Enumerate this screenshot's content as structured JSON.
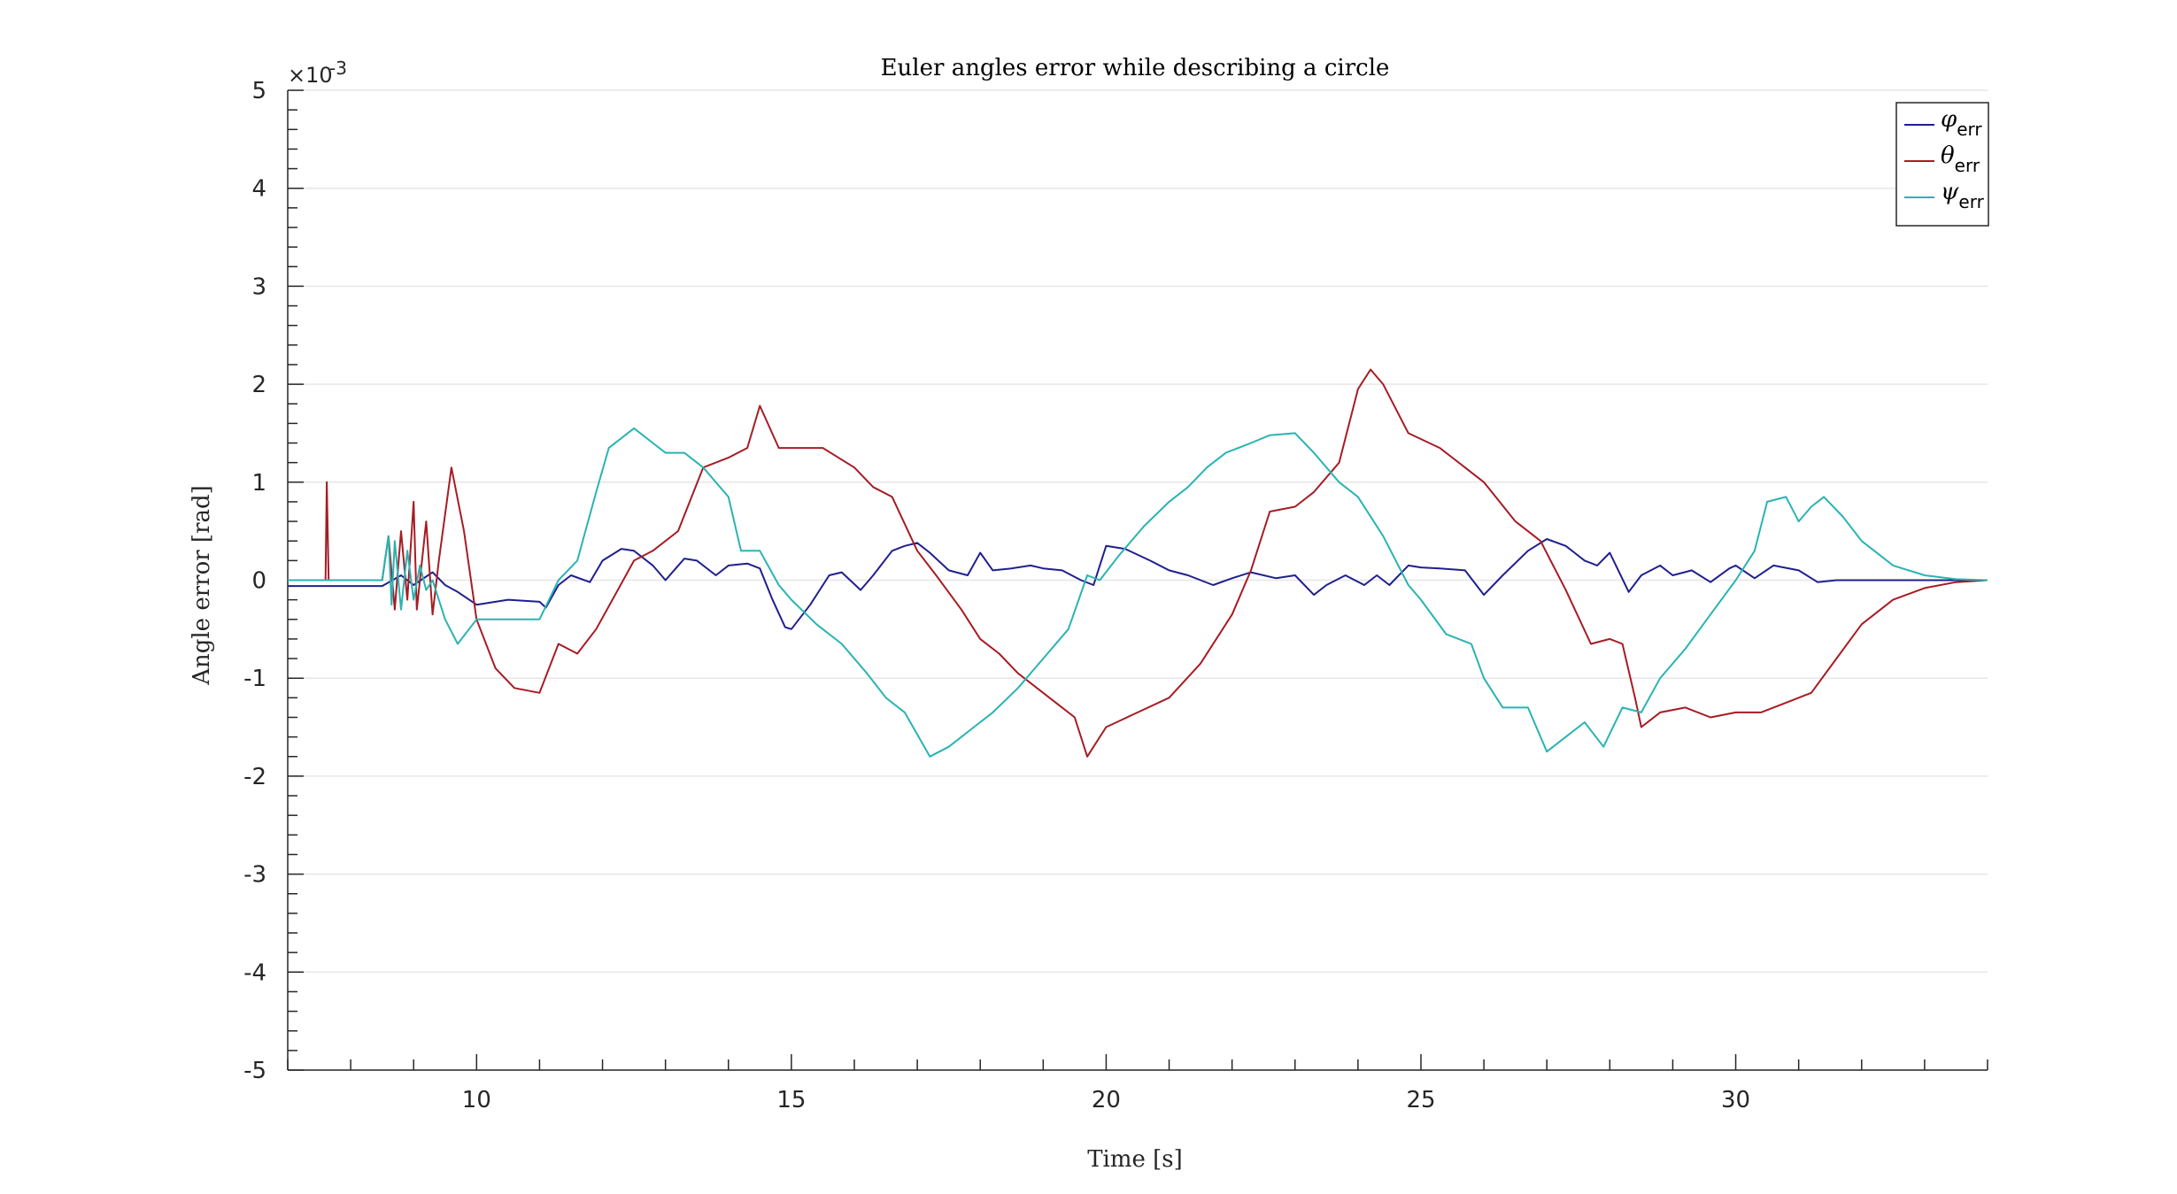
{
  "chart_data": {
    "type": "line",
    "title": "Euler angles error while describing a circle",
    "xlabel": "Time [s]",
    "ylabel": "Angle error [rad]",
    "y_exponent_label": "×10",
    "y_exponent_power": "-3",
    "xlim": [
      7,
      34
    ],
    "ylim": [
      -5,
      5
    ],
    "x_ticks": [
      10,
      15,
      20,
      25,
      30
    ],
    "y_ticks": [
      -5,
      -4,
      -3,
      -2,
      -1,
      0,
      1,
      2,
      3,
      4,
      5
    ],
    "grid": "y-major",
    "legend_position": "top-right",
    "colors": {
      "phi": "#1f1f8f",
      "theta": "#a61c24",
      "psi": "#2ab3b3",
      "axis": "#262626",
      "grid": "#e6e6e6"
    },
    "series": [
      {
        "key": "phi",
        "name": "φ",
        "sub": "err",
        "x": [
          7.0,
          8.5,
          8.8,
          9.0,
          9.3,
          9.5,
          9.7,
          10.0,
          10.5,
          11.0,
          11.1,
          11.3,
          11.5,
          11.8,
          12.0,
          12.3,
          12.5,
          12.8,
          13.0,
          13.3,
          13.5,
          13.8,
          14.0,
          14.3,
          14.5,
          14.7,
          14.9,
          15.0,
          15.3,
          15.6,
          15.8,
          16.1,
          16.3,
          16.6,
          16.8,
          17.0,
          17.2,
          17.5,
          17.8,
          18.0,
          18.2,
          18.5,
          18.8,
          19.0,
          19.3,
          19.6,
          19.8,
          20.0,
          20.3,
          20.7,
          21.0,
          21.3,
          21.7,
          22.0,
          22.3,
          22.7,
          23.0,
          23.3,
          23.5,
          23.8,
          24.1,
          24.3,
          24.5,
          24.8,
          25.0,
          25.3,
          25.7,
          26.0,
          26.3,
          26.7,
          27.0,
          27.3,
          27.6,
          27.8,
          28.0,
          28.3,
          28.5,
          28.8,
          29.0,
          29.3,
          29.6,
          29.9,
          30.0,
          30.3,
          30.6,
          31.0,
          31.3,
          31.6,
          32.0,
          33.0,
          34.0
        ],
        "values": [
          -0.06,
          -0.06,
          0.05,
          -0.05,
          0.08,
          -0.05,
          -0.12,
          -0.25,
          -0.2,
          -0.22,
          -0.28,
          -0.05,
          0.05,
          -0.02,
          0.2,
          0.32,
          0.3,
          0.15,
          0.0,
          0.22,
          0.2,
          0.05,
          0.15,
          0.17,
          0.12,
          -0.2,
          -0.48,
          -0.5,
          -0.25,
          0.05,
          0.08,
          -0.1,
          0.05,
          0.3,
          0.35,
          0.38,
          0.28,
          0.1,
          0.05,
          0.28,
          0.1,
          0.12,
          0.15,
          0.12,
          0.1,
          0.0,
          -0.05,
          0.35,
          0.32,
          0.2,
          0.1,
          0.05,
          -0.05,
          0.02,
          0.08,
          0.02,
          0.05,
          -0.15,
          -0.05,
          0.05,
          -0.05,
          0.05,
          -0.05,
          0.15,
          0.13,
          0.12,
          0.1,
          -0.15,
          0.05,
          0.3,
          0.42,
          0.35,
          0.2,
          0.15,
          0.28,
          -0.12,
          0.05,
          0.15,
          0.05,
          0.1,
          -0.02,
          0.12,
          0.15,
          0.02,
          0.15,
          0.1,
          -0.02,
          0.0,
          0.0,
          0.0,
          0.0
        ]
      },
      {
        "key": "theta",
        "name": "θ",
        "sub": "err",
        "x": [
          7.0,
          7.6,
          7.62,
          7.65,
          8.5,
          8.6,
          8.7,
          8.8,
          8.9,
          9.0,
          9.05,
          9.2,
          9.3,
          9.4,
          9.6,
          9.8,
          10.0,
          10.3,
          10.6,
          11.0,
          11.3,
          11.6,
          11.9,
          12.2,
          12.5,
          12.8,
          13.2,
          13.6,
          14.0,
          14.3,
          14.5,
          14.8,
          15.2,
          15.5,
          16.0,
          16.3,
          16.6,
          17.0,
          17.3,
          17.7,
          18.0,
          18.3,
          18.6,
          19.0,
          19.3,
          19.5,
          19.7,
          20.0,
          20.5,
          21.0,
          21.5,
          22.0,
          22.3,
          22.6,
          23.0,
          23.3,
          23.7,
          24.0,
          24.2,
          24.4,
          24.8,
          25.3,
          25.7,
          26.0,
          26.5,
          26.9,
          27.3,
          27.7,
          28.0,
          28.2,
          28.4,
          28.5,
          28.8,
          29.2,
          29.6,
          30.0,
          30.4,
          30.8,
          31.2,
          31.6,
          32.0,
          32.5,
          33.0,
          33.5,
          34.0
        ],
        "values": [
          0.0,
          0.0,
          1.0,
          0.0,
          0.0,
          0.45,
          -0.3,
          0.5,
          -0.2,
          0.8,
          -0.3,
          0.6,
          -0.35,
          0.2,
          1.15,
          0.5,
          -0.4,
          -0.9,
          -1.1,
          -1.15,
          -0.65,
          -0.75,
          -0.5,
          -0.15,
          0.2,
          0.3,
          0.5,
          1.15,
          1.25,
          1.35,
          1.78,
          1.35,
          1.35,
          1.35,
          1.15,
          0.95,
          0.85,
          0.3,
          0.05,
          -0.3,
          -0.6,
          -0.75,
          -0.95,
          -1.15,
          -1.3,
          -1.4,
          -1.8,
          -1.5,
          -1.35,
          -1.2,
          -0.85,
          -0.35,
          0.1,
          0.7,
          0.75,
          0.9,
          1.2,
          1.95,
          2.15,
          2.0,
          1.5,
          1.35,
          1.15,
          1.0,
          0.6,
          0.4,
          -0.1,
          -0.65,
          -0.6,
          -0.65,
          -1.2,
          -1.5,
          -1.35,
          -1.3,
          -1.4,
          -1.35,
          -1.35,
          -1.25,
          -1.15,
          -0.8,
          -0.45,
          -0.2,
          -0.08,
          -0.02,
          0.0
        ]
      },
      {
        "key": "psi",
        "name": "ψ",
        "sub": "err",
        "x": [
          7.0,
          8.5,
          8.6,
          8.65,
          8.7,
          8.8,
          8.9,
          9.0,
          9.1,
          9.2,
          9.3,
          9.5,
          9.7,
          10.0,
          10.4,
          11.0,
          11.3,
          11.6,
          11.9,
          12.1,
          12.5,
          12.8,
          13.0,
          13.3,
          13.6,
          14.0,
          14.2,
          14.5,
          14.8,
          15.0,
          15.4,
          15.8,
          16.2,
          16.5,
          16.8,
          17.2,
          17.5,
          17.9,
          18.2,
          18.6,
          19.0,
          19.4,
          19.7,
          19.9,
          20.2,
          20.6,
          21.0,
          21.3,
          21.6,
          21.9,
          22.3,
          22.6,
          23.0,
          23.3,
          23.7,
          24.0,
          24.4,
          24.8,
          25.0,
          25.4,
          25.8,
          26.0,
          26.3,
          26.7,
          27.0,
          27.3,
          27.6,
          27.9,
          28.2,
          28.5,
          28.8,
          29.2,
          29.6,
          30.0,
          30.3,
          30.5,
          30.8,
          31.0,
          31.2,
          31.4,
          31.7,
          32.0,
          32.5,
          33.0,
          33.5,
          34.0
        ],
        "values": [
          0.0,
          0.0,
          0.45,
          -0.25,
          0.4,
          -0.3,
          0.3,
          -0.2,
          0.15,
          -0.1,
          0.0,
          -0.4,
          -0.65,
          -0.4,
          -0.4,
          -0.4,
          0.0,
          0.2,
          0.9,
          1.35,
          1.55,
          1.4,
          1.3,
          1.3,
          1.15,
          0.85,
          0.3,
          0.3,
          -0.05,
          -0.2,
          -0.45,
          -0.65,
          -0.95,
          -1.2,
          -1.35,
          -1.8,
          -1.7,
          -1.5,
          -1.35,
          -1.1,
          -0.8,
          -0.5,
          0.05,
          0.0,
          0.25,
          0.55,
          0.8,
          0.95,
          1.15,
          1.3,
          1.4,
          1.48,
          1.5,
          1.3,
          1.0,
          0.85,
          0.45,
          -0.05,
          -0.2,
          -0.55,
          -0.65,
          -1.0,
          -1.3,
          -1.3,
          -1.75,
          -1.6,
          -1.45,
          -1.7,
          -1.3,
          -1.35,
          -1.0,
          -0.7,
          -0.35,
          0.0,
          0.3,
          0.8,
          0.85,
          0.6,
          0.75,
          0.85,
          0.65,
          0.4,
          0.15,
          0.05,
          0.01,
          0.0
        ]
      }
    ]
  }
}
